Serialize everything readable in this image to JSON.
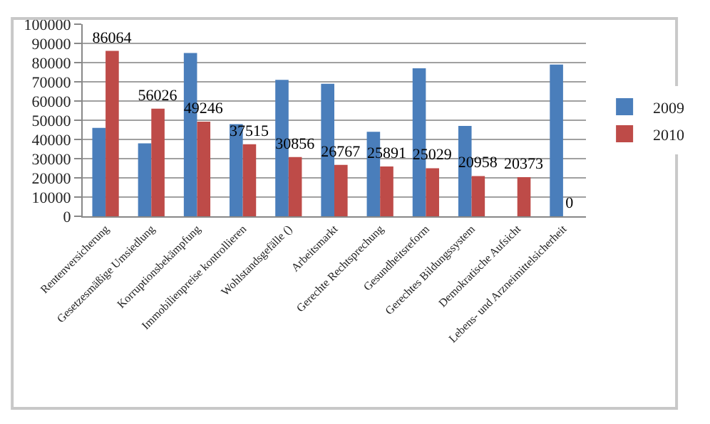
{
  "chart_data": {
    "type": "bar",
    "categories": [
      "Rentenversicherung",
      "Gesetzesmäßige Umsiedlung",
      "Korruptionsbekämpfung",
      "Immobilienpreise kontrollieren",
      "Wohlstandsgefälle ()",
      "Arbeitsmarkt",
      "Gerechte Rechtsprechung",
      "Gesundheitsreform",
      "Gerechtes Bildungssystem",
      "Demokratische Aufsicht",
      "Lebens- und Arzneimittelsicherheit"
    ],
    "series": [
      {
        "name": "2009",
        "color": "#4a7ebb",
        "values": [
          46000,
          38000,
          85000,
          48000,
          71000,
          69000,
          44000,
          77000,
          47000,
          null,
          79000
        ]
      },
      {
        "name": "2010",
        "color": "#be4b48",
        "values": [
          86064,
          56026,
          49246,
          37515,
          30856,
          26767,
          25891,
          25029,
          20958,
          20373,
          0
        ],
        "value_labels": [
          "86064",
          "56026",
          "49246",
          "37515",
          "30856",
          "26767",
          "25891",
          "25029",
          "20958",
          "20373",
          "0"
        ]
      }
    ],
    "ylim": [
      0,
      100000
    ],
    "yticks": [
      0,
      10000,
      20000,
      30000,
      40000,
      50000,
      60000,
      70000,
      80000,
      90000,
      100000
    ],
    "grid": "y",
    "legend": "right"
  }
}
